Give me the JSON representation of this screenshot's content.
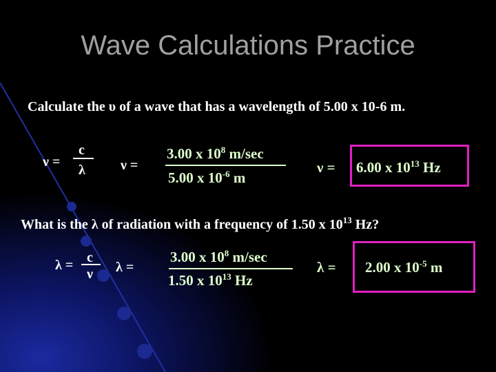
{
  "title": "Wave Calculations Practice",
  "problem_1": {
    "question": "Calculate the υ of a wave that has a wavelength of 5.00 x 10-6 m.",
    "formula": {
      "lhs": "ν =",
      "numerator": "c",
      "denominator": "λ"
    },
    "substitution": {
      "lhs": "ν =",
      "numerator": {
        "base": "3.00 x 10",
        "exponent": "8",
        "unit": "m/sec"
      },
      "denominator": {
        "base": "5.00 x 10",
        "exponent": "-6",
        "unit": "m"
      }
    },
    "answer": {
      "lhs": "ν =",
      "base": "6.00 x 10",
      "exponent": "13",
      "unit": "Hz"
    }
  },
  "problem_2": {
    "question": {
      "text": "What is the λ of radiation with a frequency of 1.50 x 10",
      "exponent": "13",
      "unit": "Hz?"
    },
    "formula": {
      "lhs": "λ =",
      "numerator": "c",
      "denominator": "ν"
    },
    "substitution": {
      "lhs": "λ =",
      "numerator": {
        "base": "3.00 x 10",
        "exponent": "8",
        "unit": "m/sec"
      },
      "denominator": {
        "base": "1.50 x 10",
        "exponent": "13",
        "unit": "Hz"
      }
    },
    "answer": {
      "lhs": "λ =",
      "base": "2.00 x 10",
      "exponent": "-5",
      "unit": "m"
    }
  }
}
